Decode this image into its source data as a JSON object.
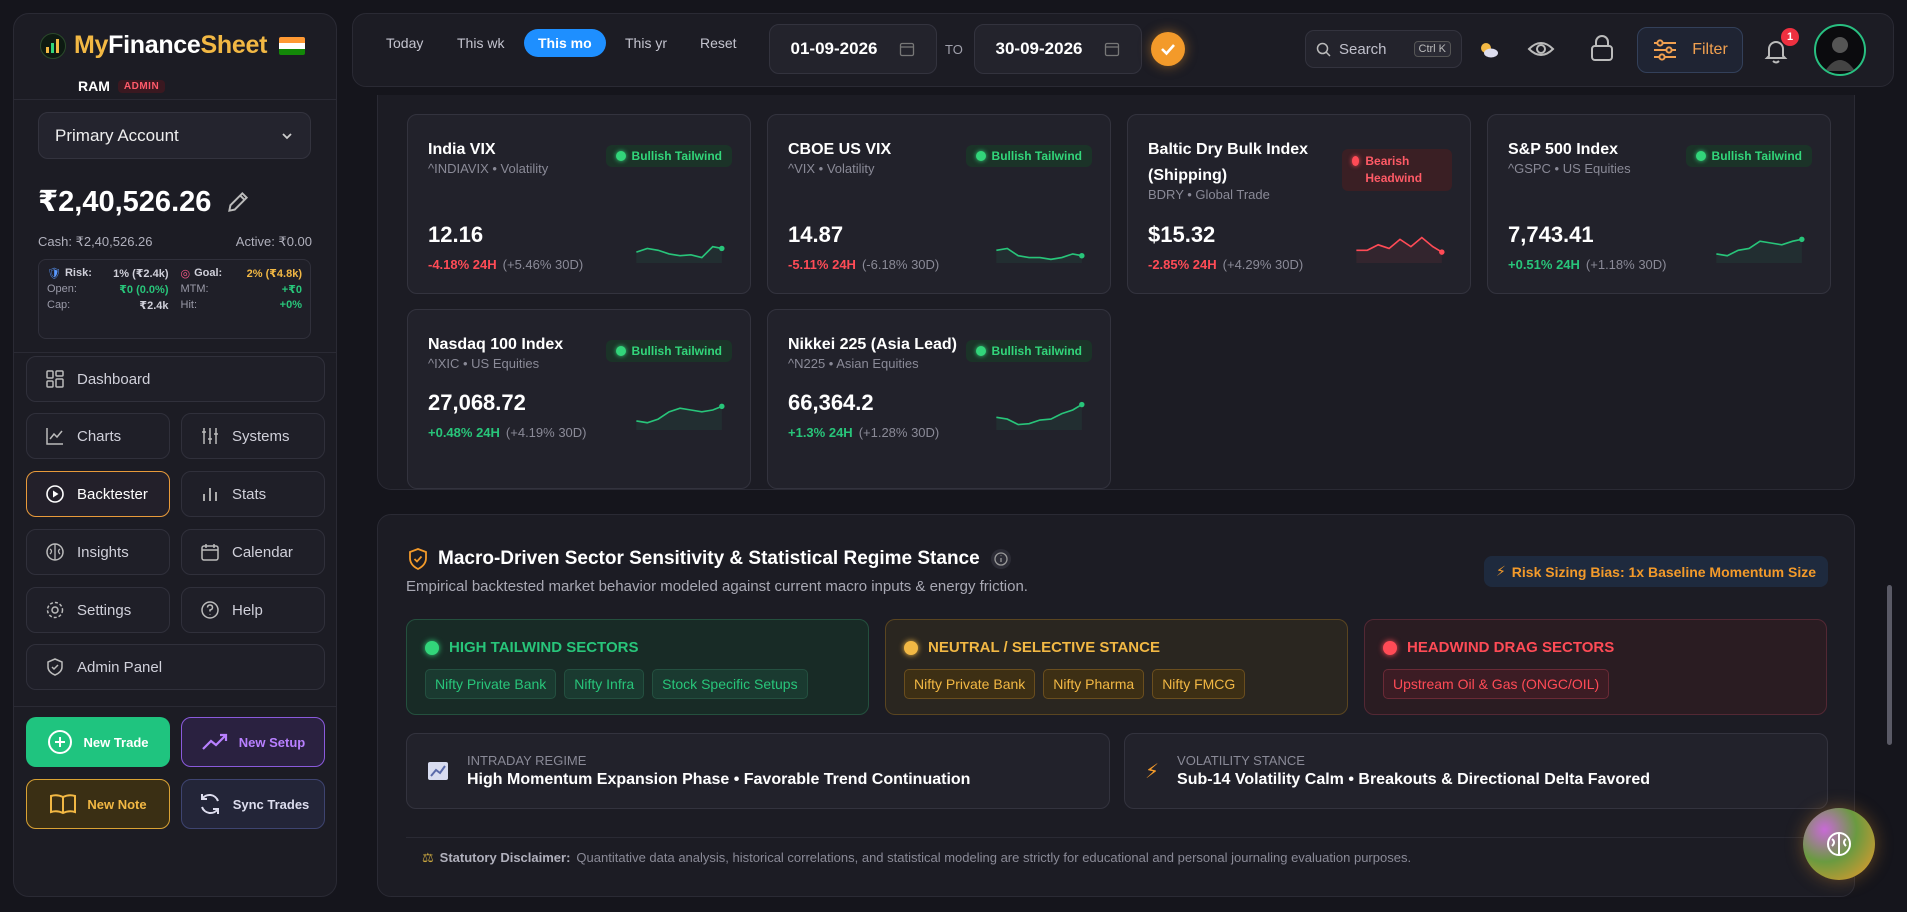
{
  "brand": {
    "part1": "My",
    "part2": "Finance",
    "part3": "Sheet"
  },
  "user": {
    "name": "RAM",
    "role": "ADMIN"
  },
  "account": {
    "selected": "Primary Account",
    "balance": "₹2,40,526.26",
    "cash": "Cash: ₹2,40,526.26",
    "active": "Active: ₹0.00"
  },
  "risk_stats": {
    "risk_label": "Risk:",
    "risk_value": "1% (₹2.4k)",
    "goal_label": "Goal:",
    "goal_value": "2% (₹4.8k)",
    "open_label": "Open:",
    "open_value": "₹0 (0.0%)",
    "mtm_label": "MTM:",
    "mtm_value": "+₹0",
    "cap_label": "Cap:",
    "cap_value": "₹2.4k",
    "hit_label": "Hit:",
    "hit_value": "+0%"
  },
  "nav": {
    "dashboard": "Dashboard",
    "charts": "Charts",
    "systems": "Systems",
    "backtester": "Backtester",
    "stats": "Stats",
    "insights": "Insights",
    "calendar": "Calendar",
    "settings": "Settings",
    "help": "Help",
    "admin_panel": "Admin Panel"
  },
  "actions": {
    "new_trade": "New Trade",
    "new_setup": "New Setup",
    "new_note": "New Note",
    "sync_trades": "Sync Trades"
  },
  "topbar": {
    "ranges": [
      "Today",
      "This wk",
      "This mo",
      "This yr",
      "Reset"
    ],
    "active_range": "This mo",
    "date_from": "01-09-2026",
    "to_label": "TO",
    "date_to": "30-09-2026",
    "search_label": "Search",
    "search_shortcut": "Ctrl K",
    "filter_label": "Filter",
    "notification_count": "1"
  },
  "markets": [
    {
      "name": "India VIX",
      "sub": "^INDIAVIX • Volatility",
      "value": "12.16",
      "chg24": "-4.18% 24H",
      "chg30": "(+5.46% 30D)",
      "stance": "Bullish Tailwind",
      "trend": "bull",
      "chg_dir": "neg"
    },
    {
      "name": "CBOE US VIX",
      "sub": "^VIX • Volatility",
      "value": "14.87",
      "chg24": "-5.11% 24H",
      "chg30": "(-6.18% 30D)",
      "stance": "Bullish Tailwind",
      "trend": "bull",
      "chg_dir": "neg"
    },
    {
      "name": "Baltic Dry Bulk Index (Shipping)",
      "sub": "BDRY • Global Trade",
      "value": "$15.32",
      "chg24": "-2.85% 24H",
      "chg30": "(+4.29% 30D)",
      "stance": "Bearish Headwind",
      "trend": "bear",
      "chg_dir": "neg"
    },
    {
      "name": "S&P 500 Index",
      "sub": "^GSPC • US Equities",
      "value": "7,743.41",
      "chg24": "+0.51% 24H",
      "chg30": "(+1.18% 30D)",
      "stance": "Bullish Tailwind",
      "trend": "bull",
      "chg_dir": "pos"
    },
    {
      "name": "Nasdaq 100 Index",
      "sub": "^IXIC • US Equities",
      "value": "27,068.72",
      "chg24": "+0.48% 24H",
      "chg30": "(+4.19% 30D)",
      "stance": "Bullish Tailwind",
      "trend": "bull",
      "chg_dir": "pos"
    },
    {
      "name": "Nikkei 225 (Asia Lead)",
      "sub": "^N225 • Asian Equities",
      "value": "66,364.2",
      "chg24": "+1.3% 24H",
      "chg30": "(+1.28% 30D)",
      "stance": "Bullish Tailwind",
      "trend": "bull",
      "chg_dir": "pos"
    }
  ],
  "sector": {
    "title": "Macro-Driven Sector Sensitivity & Statistical Regime Stance",
    "subtitle": "Empirical backtested market behavior modeled against current macro inputs & energy friction.",
    "bias": "Risk Sizing Bias: 1x Baseline Momentum Size",
    "tailwind": {
      "label": "HIGH TAILWIND SECTORS",
      "tags": [
        "Nifty Private Bank",
        "Nifty Infra",
        "Stock Specific Setups"
      ]
    },
    "neutral": {
      "label": "NEUTRAL / SELECTIVE STANCE",
      "tags": [
        "Nifty Private Bank",
        "Nifty Pharma",
        "Nifty FMCG"
      ]
    },
    "headwind": {
      "label": "HEADWIND DRAG SECTORS",
      "tags": [
        "Upstream Oil & Gas (ONGC/OIL)"
      ]
    },
    "intraday": {
      "label": "INTRADAY REGIME",
      "value": "High Momentum Expansion Phase • Favorable Trend Continuation"
    },
    "volatility": {
      "label": "VOLATILITY STANCE",
      "value": "Sub-14 Volatility Calm • Breakouts & Directional Delta Favored"
    },
    "disclaimer_label": "Statutory Disclaimer:",
    "disclaimer_text": "Quantitative data analysis, historical correlations, and statistical modeling are strictly for educational and personal journaling evaluation purposes."
  },
  "colors": {
    "accent": "#f39a2a",
    "bull": "#28c57a",
    "bear": "#ff4b56",
    "active_tab": "#1e8fff"
  }
}
